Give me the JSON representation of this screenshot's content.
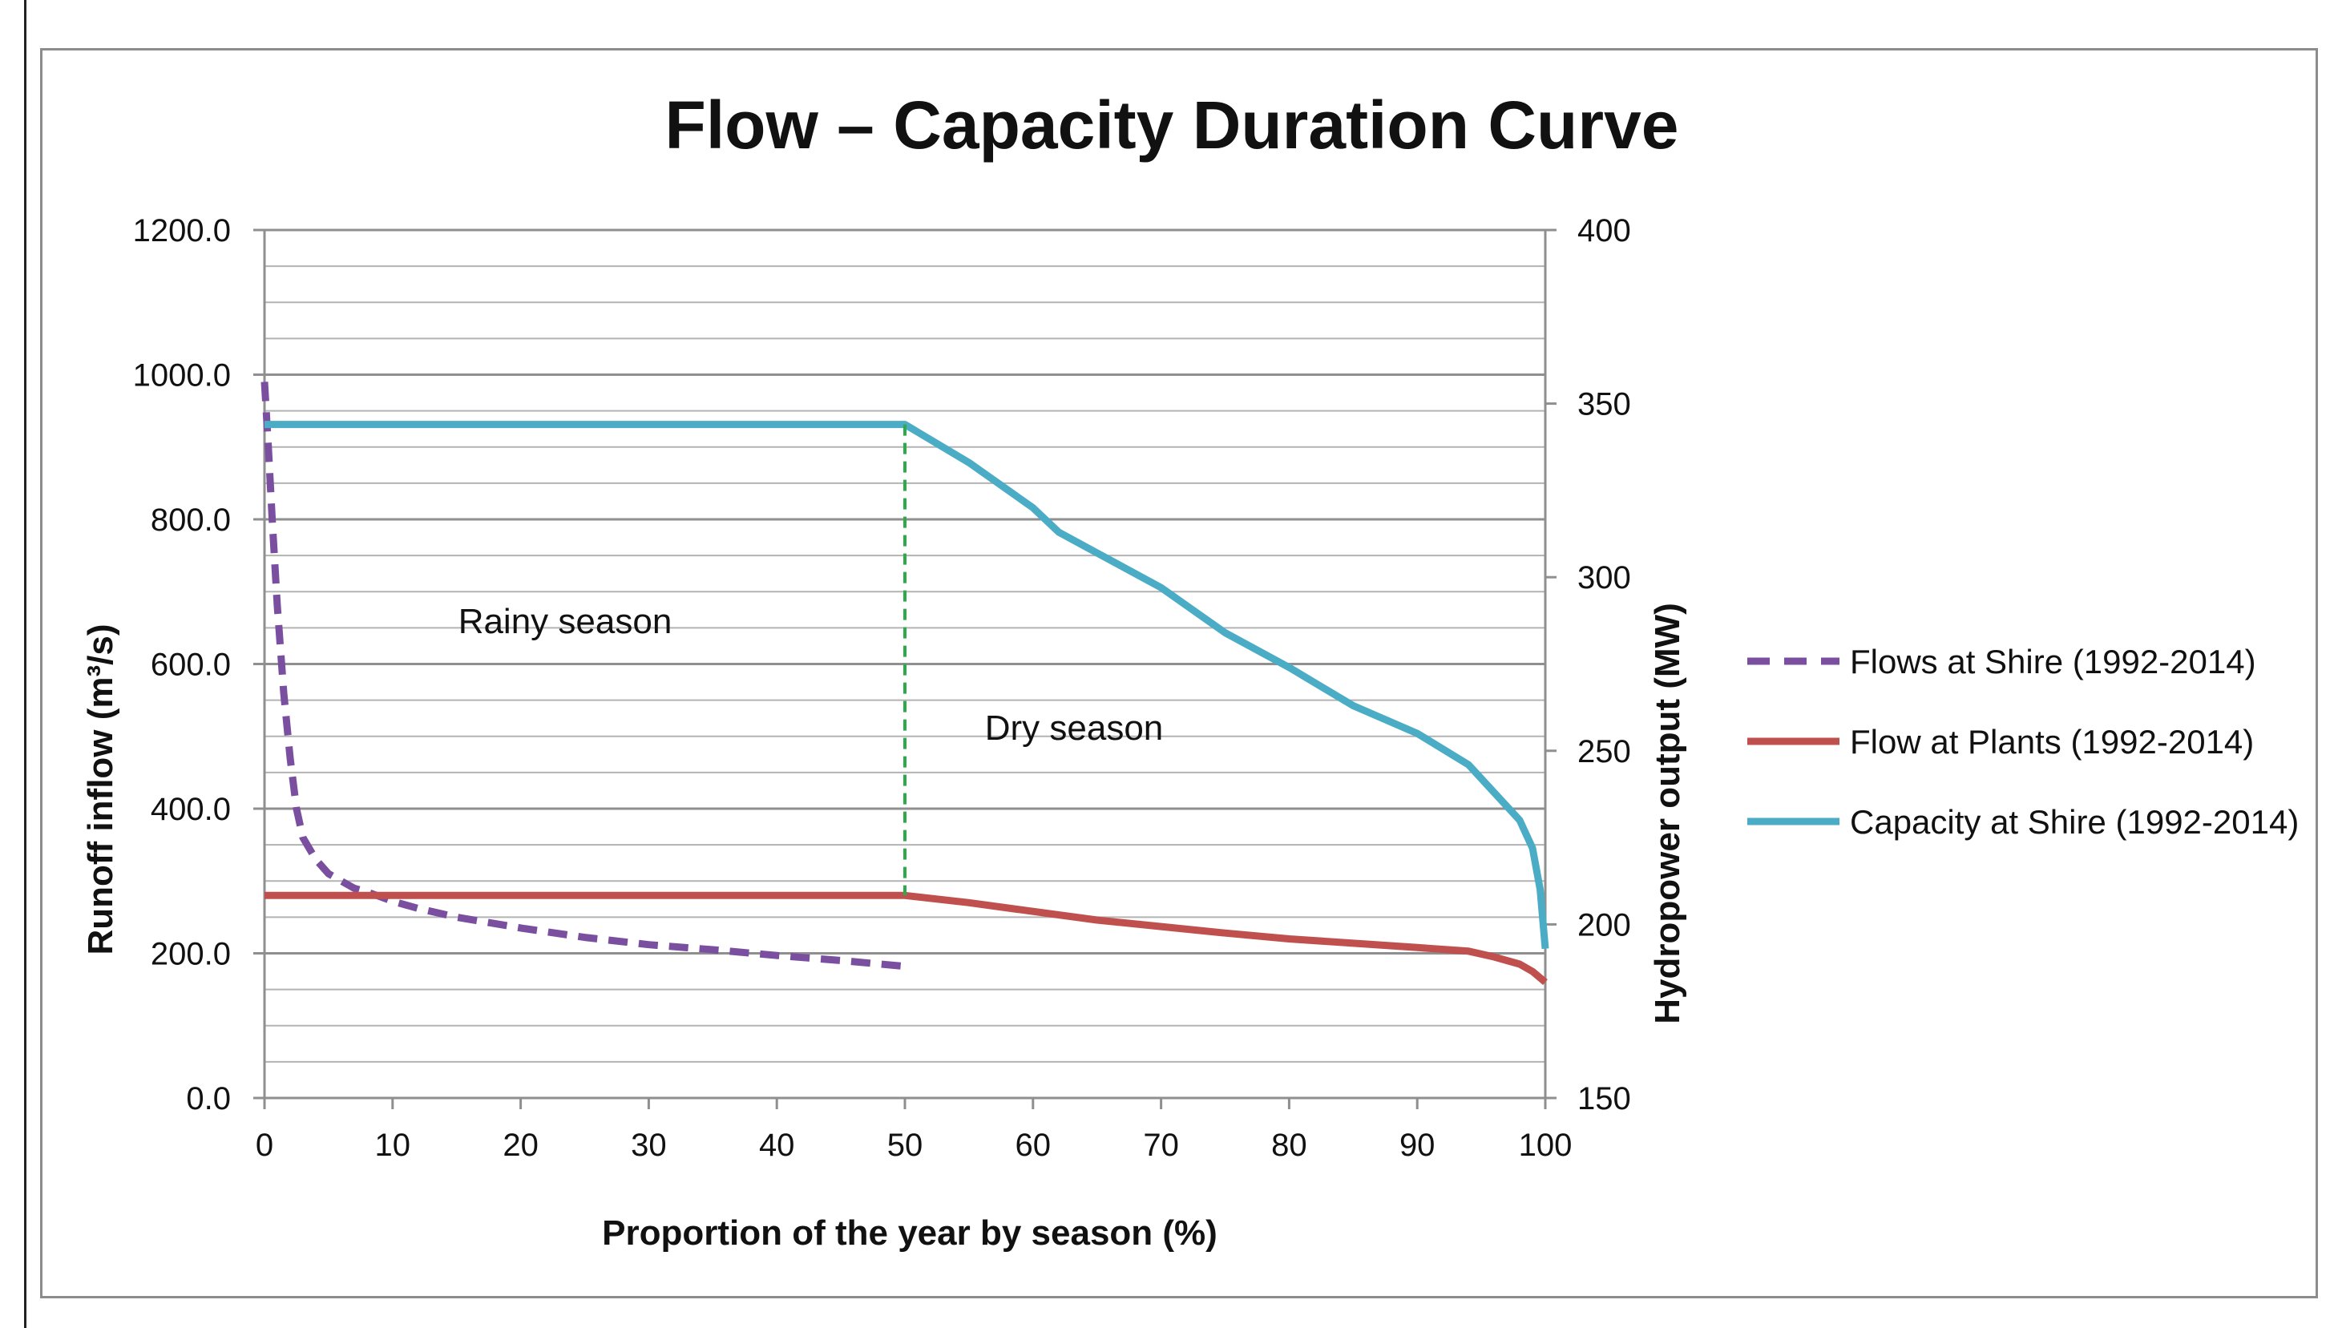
{
  "chart_data": {
    "type": "line",
    "title": "Flow – Capacity Duration Curve",
    "xlabel": "Proportion of the year by season (%)",
    "ylabel": "Runoff inflow  (m³/s)",
    "y2label": "Hydropower output (MW)",
    "xlim": [
      0,
      100
    ],
    "ylim": [
      0,
      1200
    ],
    "y2lim": [
      150,
      400
    ],
    "x_ticks": [
      "0",
      "10",
      "20",
      "30",
      "40",
      "50",
      "60",
      "70",
      "80",
      "90",
      "100"
    ],
    "y_ticks": [
      "0.0",
      "200.0",
      "400.0",
      "600.0",
      "800.0",
      "1000.0",
      "1200.0"
    ],
    "y2_ticks": [
      "150",
      "200",
      "250",
      "300",
      "350",
      "400"
    ],
    "annotations": {
      "rainy": "Rainy season",
      "dry": "Dry season",
      "divider_x": 50
    },
    "series": [
      {
        "name": "Flows at Shire (1992-2014)",
        "axis": "left",
        "style": "dashed",
        "color": "#7b4fa0",
        "x": [
          0,
          0.3,
          0.6,
          1,
          1.5,
          2,
          2.5,
          3,
          4,
          5,
          6,
          7,
          8,
          10,
          12,
          15,
          20,
          25,
          30,
          35,
          40,
          45,
          50
        ],
        "y": [
          990,
          900,
          800,
          680,
          560,
          470,
          400,
          360,
          330,
          310,
          300,
          290,
          285,
          272,
          262,
          250,
          235,
          222,
          212,
          205,
          197,
          190,
          182
        ]
      },
      {
        "name": "Flow at Plants (1992-2014)",
        "axis": "left",
        "style": "solid",
        "color": "#c0504d",
        "x": [
          0,
          10,
          20,
          30,
          40,
          50,
          55,
          60,
          65,
          70,
          75,
          80,
          85,
          90,
          94,
          96,
          98,
          99,
          100
        ],
        "y": [
          280,
          280,
          280,
          280,
          280,
          280,
          270,
          258,
          246,
          237,
          228,
          220,
          214,
          208,
          203,
          195,
          185,
          175,
          160
        ]
      },
      {
        "name": "Capacity at Shire (1992-2014)",
        "axis": "right",
        "style": "solid",
        "color": "#4bacc6",
        "x": [
          0,
          10,
          20,
          30,
          40,
          50,
          55,
          60,
          62,
          65,
          70,
          75,
          80,
          85,
          90,
          94,
          96,
          98,
          99,
          99.6,
          100
        ],
        "y": [
          344,
          344,
          344,
          344,
          344,
          344,
          333,
          320,
          313,
          307,
          297,
          284,
          274,
          263,
          255,
          246,
          238,
          230,
          222,
          210,
          193
        ]
      }
    ]
  }
}
